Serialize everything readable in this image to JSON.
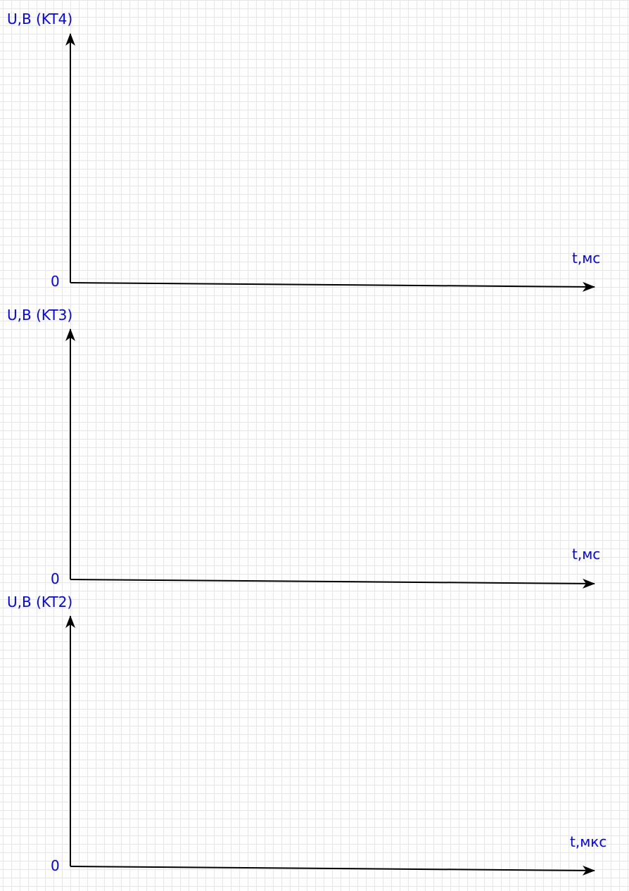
{
  "graphs": [
    {
      "y_label": "U,B (KT4)",
      "x_label": "t,мс",
      "origin_label": "0"
    },
    {
      "y_label": "U,B (KT3)",
      "x_label": "t,мс",
      "origin_label": "0"
    },
    {
      "y_label": "U,B (KT2)",
      "x_label": "t,мкс",
      "origin_label": "0"
    }
  ],
  "colors": {
    "axis": "#000000",
    "label": "#0000ff",
    "grid": "#e6e6e6",
    "background": "#ffffff"
  }
}
